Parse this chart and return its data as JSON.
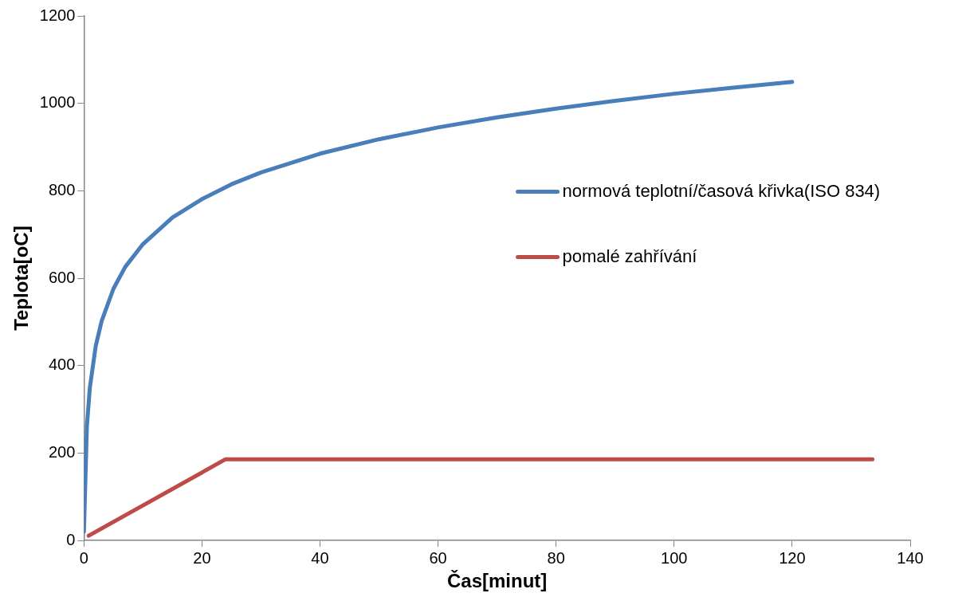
{
  "chart_data": {
    "type": "line",
    "xlabel": "Čas[minut]",
    "ylabel": "Teplota[oC]",
    "xlim": [
      0,
      140
    ],
    "xticks": [
      0,
      20,
      40,
      60,
      80,
      100,
      120,
      140
    ],
    "ylim": [
      0,
      1200
    ],
    "yticks": [
      0,
      200,
      400,
      600,
      800,
      1000,
      1200
    ],
    "grid": false,
    "legend": "right",
    "marker": "none",
    "line_style": "solid",
    "series": [
      {
        "name": "normová teplotní/časová křivka(ISO 834)",
        "color": "#4a7ebb",
        "x": [
          0,
          0.5,
          1,
          2,
          3,
          5,
          7,
          10,
          15,
          20,
          25,
          30,
          40,
          50,
          60,
          70,
          80,
          90,
          100,
          110,
          120
        ],
        "values": [
          20,
          261,
          349,
          445,
          502,
          576,
          626,
          678,
          739,
          781,
          815,
          842,
          885,
          918,
          945,
          968,
          988,
          1006,
          1022,
          1036,
          1049
        ]
      },
      {
        "name": "pomalé zahřívání",
        "color": "#be4b48",
        "x": [
          0.8,
          24,
          133.6
        ],
        "values": [
          11,
          186,
          186
        ]
      }
    ]
  }
}
